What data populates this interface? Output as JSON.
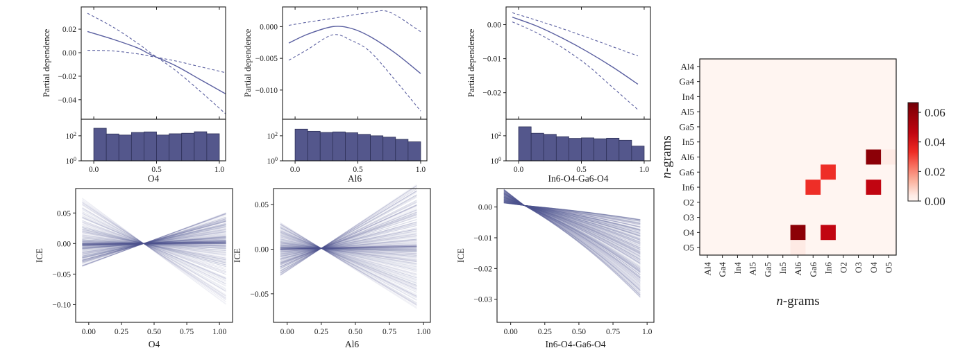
{
  "figure": {
    "line_color": "#5a5fa0",
    "hist_fill": "#54578c",
    "hist_edge": "#2e3158",
    "ice_color": "#565b96",
    "axis_color": "#1b1b1b",
    "heatmap_bg": "#fff6f3"
  },
  "chart_data": [
    {
      "type": "pdp-line",
      "title": "",
      "xlabel": "O4",
      "ylabel": "Partial dependence",
      "x_range": [
        -0.1,
        1.05
      ],
      "y_range": [
        0.0389,
        -0.0566
      ],
      "xticks": [
        {
          "v": 0.0,
          "label": "0.0"
        },
        {
          "v": 0.5,
          "label": "0.5"
        },
        {
          "v": 1.0,
          "label": "1.0"
        }
      ],
      "yticks": [
        {
          "v": 0.02,
          "label": "0.02"
        },
        {
          "v": 0.0,
          "label": "0.00"
        },
        {
          "v": -0.02,
          "label": "−0.02"
        },
        {
          "v": -0.04,
          "label": "−0.04"
        }
      ],
      "series": [
        {
          "name": "mean",
          "style": "solid",
          "points": [
            [
              -0.05,
              0.018
            ],
            [
              0.15,
              0.0115
            ],
            [
              0.35,
              0.004
            ],
            [
              0.45,
              -0.0015
            ],
            [
              0.65,
              -0.011
            ],
            [
              0.85,
              -0.023
            ],
            [
              1.05,
              -0.035
            ]
          ]
        },
        {
          "name": "ci-upper",
          "style": "dashed",
          "points": [
            [
              -0.05,
              0.0335
            ],
            [
              0.15,
              0.022
            ],
            [
              0.35,
              0.008
            ],
            [
              0.45,
              0.0
            ],
            [
              0.65,
              -0.015
            ],
            [
              0.85,
              -0.033
            ],
            [
              1.05,
              -0.052
            ]
          ]
        },
        {
          "name": "ci-lower",
          "style": "dashed",
          "points": [
            [
              -0.05,
              0.002
            ],
            [
              0.15,
              0.0015
            ],
            [
              0.35,
              -0.001
            ],
            [
              0.45,
              -0.003
            ],
            [
              0.65,
              -0.007
            ],
            [
              0.85,
              -0.012
            ],
            [
              1.05,
              -0.017
            ]
          ]
        }
      ],
      "histogram": {
        "yscale": "log",
        "y_max": 2100,
        "yticks": [
          {
            "exp": 0
          },
          {
            "exp": 2
          }
        ],
        "bin_start": 0.0,
        "bin_width": 0.1,
        "counts": [
          400,
          140,
          115,
          185,
          205,
          115,
          145,
          160,
          210,
          145
        ]
      }
    },
    {
      "type": "pdp-line",
      "title": "",
      "xlabel": "Al6",
      "ylabel": "Partial dependence",
      "x_range": [
        -0.1,
        1.05
      ],
      "y_range": [
        0.0031,
        -0.0146
      ],
      "xticks": [
        {
          "v": 0.0,
          "label": "0.0"
        },
        {
          "v": 0.5,
          "label": "0.5"
        },
        {
          "v": 1.0,
          "label": "1.0"
        }
      ],
      "yticks": [
        {
          "v": 0.0,
          "label": "0.000"
        },
        {
          "v": -0.005,
          "label": "−0.005"
        },
        {
          "v": -0.01,
          "label": "−0.010"
        }
      ],
      "series": [
        {
          "name": "mean",
          "style": "solid",
          "points": [
            [
              -0.05,
              -0.0026
            ],
            [
              0.1,
              -0.0012
            ],
            [
              0.3,
              0.0
            ],
            [
              0.45,
              -0.0003
            ],
            [
              0.6,
              -0.0016
            ],
            [
              0.8,
              -0.0042
            ],
            [
              1.0,
              -0.0074
            ]
          ]
        },
        {
          "name": "ci-upper",
          "style": "dashed",
          "points": [
            [
              -0.05,
              0.0002
            ],
            [
              0.1,
              0.0007
            ],
            [
              0.3,
              0.0013
            ],
            [
              0.45,
              0.0018
            ],
            [
              0.6,
              0.0022
            ],
            [
              0.75,
              0.0023
            ],
            [
              1.0,
              -0.0008
            ]
          ]
        },
        {
          "name": "ci-lower",
          "style": "dashed",
          "points": [
            [
              -0.05,
              -0.0053
            ],
            [
              0.1,
              -0.0036
            ],
            [
              0.3,
              -0.0013
            ],
            [
              0.45,
              -0.0022
            ],
            [
              0.6,
              -0.004
            ],
            [
              0.8,
              -0.0085
            ],
            [
              1.0,
              -0.0133
            ]
          ]
        }
      ],
      "histogram": {
        "yscale": "log",
        "y_max": 2100,
        "yticks": [
          {
            "exp": 0
          },
          {
            "exp": 2
          }
        ],
        "bin_start": 0.0,
        "bin_width": 0.1,
        "counts": [
          340,
          230,
          185,
          205,
          175,
          130,
          100,
          78,
          52,
          33
        ]
      }
    },
    {
      "type": "pdp-line",
      "title": "",
      "xlabel": "In6-O4-Ga6-O4",
      "ylabel": "Partial dependence",
      "x_range": [
        -0.1,
        1.05
      ],
      "y_range": [
        0.0052,
        -0.0278
      ],
      "xticks": [
        {
          "v": 0.0,
          "label": "0.0"
        },
        {
          "v": 0.5,
          "label": "0.5"
        },
        {
          "v": 1.0,
          "label": "1.0"
        }
      ],
      "yticks": [
        {
          "v": 0.0,
          "label": "0.00"
        },
        {
          "v": -0.01,
          "label": "−0.01"
        },
        {
          "v": -0.02,
          "label": "−0.02"
        }
      ],
      "series": [
        {
          "name": "mean",
          "style": "solid",
          "points": [
            [
              -0.05,
              0.0022
            ],
            [
              0.15,
              -0.0005
            ],
            [
              0.35,
              -0.004
            ],
            [
              0.55,
              -0.008
            ],
            [
              0.75,
              -0.0125
            ],
            [
              0.95,
              -0.0175
            ]
          ]
        },
        {
          "name": "ci-upper",
          "style": "dashed",
          "points": [
            [
              -0.05,
              0.0035
            ],
            [
              0.15,
              0.0012
            ],
            [
              0.35,
              -0.0012
            ],
            [
              0.55,
              -0.0038
            ],
            [
              0.75,
              -0.0065
            ],
            [
              0.95,
              -0.0092
            ]
          ]
        },
        {
          "name": "ci-lower",
          "style": "dashed",
          "points": [
            [
              -0.05,
              0.0008
            ],
            [
              0.15,
              -0.0025
            ],
            [
              0.35,
              -0.0068
            ],
            [
              0.55,
              -0.012
            ],
            [
              0.75,
              -0.0185
            ],
            [
              0.95,
              -0.025
            ]
          ]
        }
      ],
      "histogram": {
        "yscale": "log",
        "y_max": 2100,
        "yticks": [
          {
            "exp": 0
          },
          {
            "exp": 2
          }
        ],
        "bin_start": 0.0,
        "bin_width": 0.1,
        "counts": [
          520,
          160,
          130,
          85,
          62,
          68,
          58,
          64,
          44,
          15
        ]
      }
    },
    {
      "type": "ice-lines",
      "xlabel": "O4",
      "ylabel": "ICE",
      "x_range": [
        -0.1,
        1.1
      ],
      "y_range": [
        0.09,
        -0.129
      ],
      "xticks": [
        {
          "v": 0.0,
          "label": "0.00"
        },
        {
          "v": 0.25,
          "label": "0.25"
        },
        {
          "v": 0.5,
          "label": "0.50"
        },
        {
          "v": 0.75,
          "label": "0.75"
        },
        {
          "v": 1.0,
          "label": "1.00"
        }
      ],
      "yticks": [
        {
          "v": 0.05,
          "label": "0.05"
        },
        {
          "v": 0.0,
          "label": "0.00"
        },
        {
          "v": -0.05,
          "label": "−0.05"
        },
        {
          "v": -0.1,
          "label": "−0.10"
        }
      ],
      "lines": {
        "n": 340,
        "x_start": -0.05,
        "x_end": 1.05,
        "cross_x": 0.42,
        "cross_y": 0.0,
        "start_min": -0.038,
        "start_max": 0.075,
        "curve": 0,
        "seed": 11
      }
    },
    {
      "type": "ice-lines",
      "xlabel": "Al6",
      "ylabel": "ICE",
      "x_range": [
        -0.1,
        1.05
      ],
      "y_range": [
        0.068,
        -0.082
      ],
      "xticks": [
        {
          "v": 0.0,
          "label": "0.00"
        },
        {
          "v": 0.25,
          "label": "0.25"
        },
        {
          "v": 0.5,
          "label": "0.50"
        },
        {
          "v": 0.75,
          "label": "0.75"
        },
        {
          "v": 1.0,
          "label": "1.00"
        }
      ],
      "yticks": [
        {
          "v": 0.05,
          "label": "0.05"
        },
        {
          "v": 0.0,
          "label": "0.00"
        },
        {
          "v": -0.05,
          "label": "−0.05"
        }
      ],
      "lines": {
        "n": 340,
        "x_start": -0.05,
        "x_end": 0.95,
        "cross_x": 0.25,
        "cross_y": 0.001,
        "start_min": -0.03,
        "start_max": 0.03,
        "curve": 0,
        "seed": 23
      }
    },
    {
      "type": "ice-lines",
      "xlabel": "In6-O4-Ga6-O4",
      "ylabel": "ICE",
      "x_range": [
        -0.1,
        1.05
      ],
      "y_range": [
        0.006,
        -0.0375
      ],
      "xticks": [
        {
          "v": 0.0,
          "label": "0.00"
        },
        {
          "v": 0.25,
          "label": "0.25"
        },
        {
          "v": 0.5,
          "label": "0.50"
        },
        {
          "v": 0.75,
          "label": "0.75"
        },
        {
          "v": 1.0,
          "label": "1.0"
        }
      ],
      "yticks": [
        {
          "v": 0.0,
          "label": "0.00"
        },
        {
          "v": -0.01,
          "label": "−0.01"
        },
        {
          "v": -0.02,
          "label": "−0.02"
        },
        {
          "v": -0.03,
          "label": "−0.03"
        }
      ],
      "lines": {
        "n": 340,
        "x_start": -0.05,
        "x_end": 0.95,
        "cross_x": 0.1,
        "cross_y": 0.0005,
        "start_min": 0.0013,
        "start_max": 0.0058,
        "curve": 0.3,
        "seed": 37
      }
    },
    {
      "type": "heatmap",
      "xlabel": "n-grams",
      "ylabel": "n-grams",
      "labels": [
        "Al4",
        "Ga4",
        "In4",
        "Al5",
        "Ga5",
        "In5",
        "Al6",
        "Ga6",
        "In6",
        "O2",
        "O3",
        "O4",
        "O5"
      ],
      "vmin": 0.0,
      "vmax": 0.0666,
      "cells": [
        {
          "row": "Al6",
          "col": "O4",
          "value": 0.061
        },
        {
          "row": "Al6",
          "col": "O5",
          "value": 0.004
        },
        {
          "row": "Ga6",
          "col": "In6",
          "value": 0.033
        },
        {
          "row": "In6",
          "col": "Ga6",
          "value": 0.033
        },
        {
          "row": "In6",
          "col": "O4",
          "value": 0.046
        },
        {
          "row": "O4",
          "col": "Al6",
          "value": 0.061
        },
        {
          "row": "O4",
          "col": "In6",
          "value": 0.046
        },
        {
          "row": "O5",
          "col": "Al6",
          "value": 0.004
        }
      ],
      "colorbar": {
        "ticks": [
          {
            "v": 0.0,
            "label": "0.00"
          },
          {
            "v": 0.02,
            "label": "0.02"
          },
          {
            "v": 0.04,
            "label": "0.04"
          },
          {
            "v": 0.06,
            "label": "0.06"
          }
        ]
      },
      "colormap_stops": [
        [
          0.0,
          "#fff5f1"
        ],
        [
          0.06,
          "#feeae4"
        ],
        [
          0.2,
          "#fbb4a0"
        ],
        [
          0.35,
          "#f87262"
        ],
        [
          0.5,
          "#ee2c25"
        ],
        [
          0.69,
          "#c10511"
        ],
        [
          0.92,
          "#8b0007"
        ],
        [
          1.0,
          "#6f0009"
        ]
      ]
    }
  ]
}
